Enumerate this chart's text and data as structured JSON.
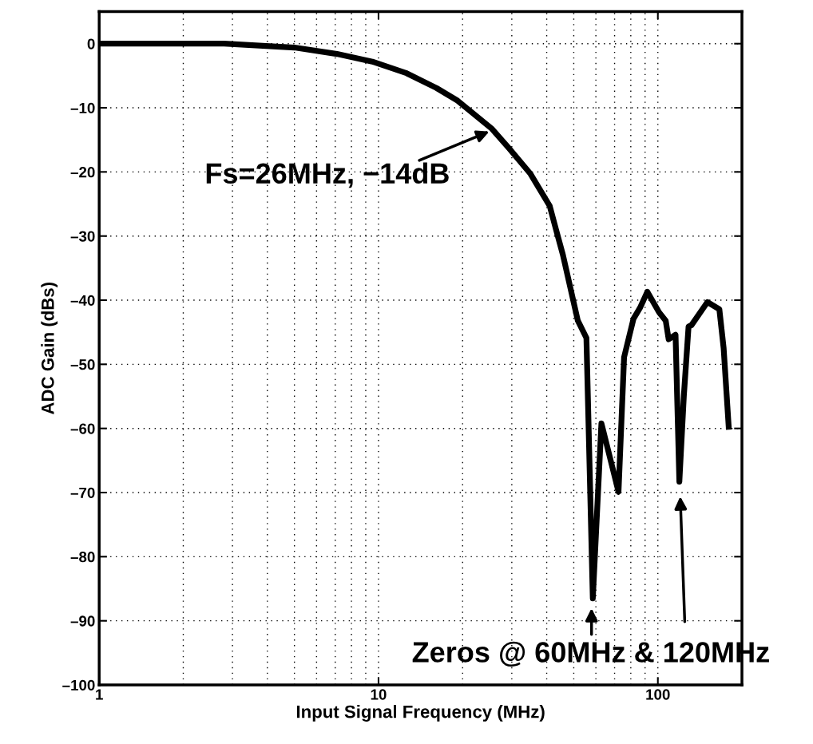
{
  "chart_data": {
    "type": "line",
    "xlabel": "Input Signal Frequency (MHz)",
    "ylabel": "ADC Gain (dBs)",
    "log": "x",
    "grid": true,
    "line_style": "solid",
    "xlim": [
      1,
      200
    ],
    "xticks": [
      1,
      10,
      100
    ],
    "ylim": [
      -100,
      5
    ],
    "yticks": [
      {
        "value": -100,
        "label": "–100"
      },
      {
        "value": -90,
        "label": "–90"
      },
      {
        "value": -80,
        "label": "–80"
      },
      {
        "value": -70,
        "label": "–70"
      },
      {
        "value": -60,
        "label": "–60"
      },
      {
        "value": -50,
        "label": "–50"
      },
      {
        "value": -40,
        "label": "–40"
      },
      {
        "value": -30,
        "label": "–30"
      },
      {
        "value": -20,
        "label": "–20"
      },
      {
        "value": -10,
        "label": "–10"
      },
      0
    ],
    "series": [
      {
        "color": "#000000",
        "x": [
          1.0,
          2.8,
          5.0,
          7.1,
          9.5,
          12.6,
          16.1,
          19.2,
          25.5,
          29.3,
          35.0,
          41.0,
          43.2,
          45.7,
          51.7,
          55.5,
          58.5,
          62.8,
          72.3,
          75.7,
          81.8,
          86.3,
          91.7,
          101,
          106.7,
          109.3,
          115.7,
          119.4,
          123.9,
          128.8,
          131.9,
          150.4,
          166,
          172,
          179.6
        ],
        "values": [
          0,
          0,
          -0.6,
          -1.6,
          -2.8,
          -4.6,
          -6.9,
          -8.9,
          -13.3,
          -16.3,
          -20.3,
          -25.3,
          -29.0,
          -32.9,
          -43.2,
          -45.9,
          -86.5,
          -59.2,
          -69.9,
          -48.9,
          -42.9,
          -41.2,
          -38.7,
          -41.9,
          -43.2,
          -46.1,
          -45.4,
          -68.3,
          -54.9,
          -44.1,
          -43.9,
          -40.3,
          -41.4,
          -47.5,
          -60.2
        ]
      }
    ],
    "annotations": [
      "Fs=26MHz, −14dB",
      "Zeros @ 60MHz & 120MHz"
    ]
  }
}
